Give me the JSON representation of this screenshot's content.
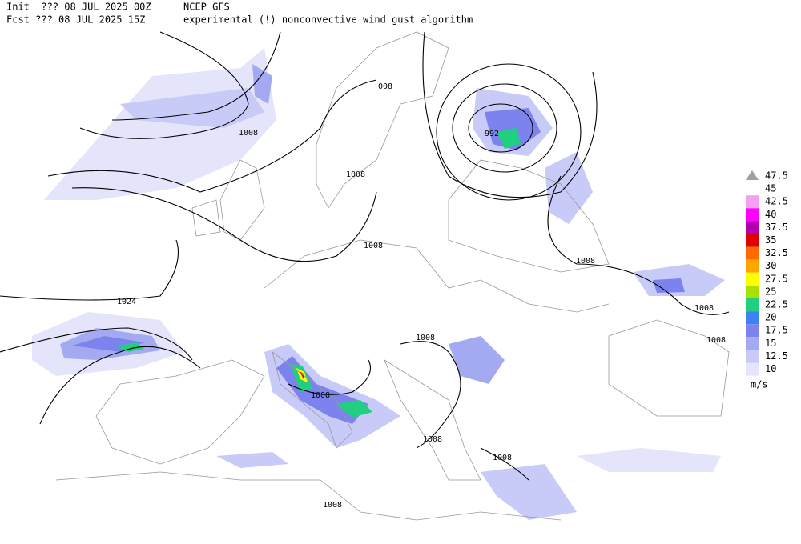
{
  "header": {
    "init": "Init  ??? 08 JUL 2025 00Z",
    "model": "NCEP GFS",
    "fcst": "Fcst ??? 08 JUL 2025 15Z",
    "description": "experimental (!) nonconvective wind gust algorithm"
  },
  "isobars": [
    "008",
    1008,
    1008,
    1008,
    992,
    1008,
    1008,
    1008,
    1024,
    1008,
    1008,
    1008,
    1008,
    1008
  ],
  "legend": {
    "unit": "m/s",
    "levels": [
      {
        "label": 47.5,
        "color": "#a0a0a0"
      },
      {
        "label": 45,
        "color": "#ffffff"
      },
      {
        "label": 42.5,
        "color": "#f4a0f0"
      },
      {
        "label": 40,
        "color": "#ff00ff"
      },
      {
        "label": 37.5,
        "color": "#b000b0"
      },
      {
        "label": 35,
        "color": "#e00000"
      },
      {
        "label": 32.5,
        "color": "#ff6a00"
      },
      {
        "label": 30,
        "color": "#ffa500"
      },
      {
        "label": 27.5,
        "color": "#ffff00"
      },
      {
        "label": 25,
        "color": "#a8e000"
      },
      {
        "label": 22.5,
        "color": "#20d080"
      },
      {
        "label": 20,
        "color": "#3c82f0"
      },
      {
        "label": 17.5,
        "color": "#7c82ee"
      },
      {
        "label": 15,
        "color": "#a4aaf2"
      },
      {
        "label": 12.5,
        "color": "#c8caf8"
      },
      {
        "label": 10,
        "color": "#e4e4fb"
      }
    ]
  }
}
